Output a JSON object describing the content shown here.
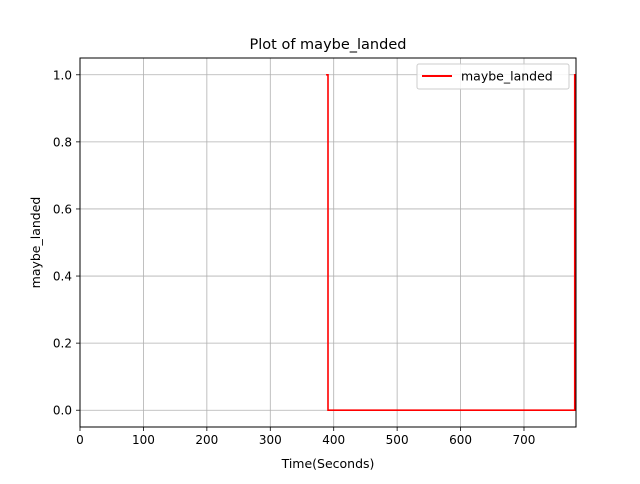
{
  "chart_data": {
    "type": "line",
    "title": "Plot of maybe_landed",
    "xlabel": "Time(Seconds)",
    "ylabel": "maybe_landed",
    "xlim": [
      0,
      782
    ],
    "ylim": [
      -0.05,
      1.05
    ],
    "xticks": [
      0,
      100,
      200,
      300,
      400,
      500,
      600,
      700
    ],
    "xtick_labels": [
      "0",
      "100",
      "200",
      "300",
      "400",
      "500",
      "600",
      "700"
    ],
    "yticks": [
      0.0,
      0.2,
      0.4,
      0.6,
      0.8,
      1.0
    ],
    "ytick_labels": [
      "0.0",
      "0.2",
      "0.4",
      "0.6",
      "0.8",
      "1.0"
    ],
    "grid": true,
    "legend_position": "top-right",
    "series": [
      {
        "name": "maybe_landed",
        "color": "#ff0000",
        "x": [
          388,
          391,
          391,
          780,
          780,
          782
        ],
        "y": [
          1,
          1,
          0,
          0,
          1,
          1
        ]
      }
    ]
  }
}
